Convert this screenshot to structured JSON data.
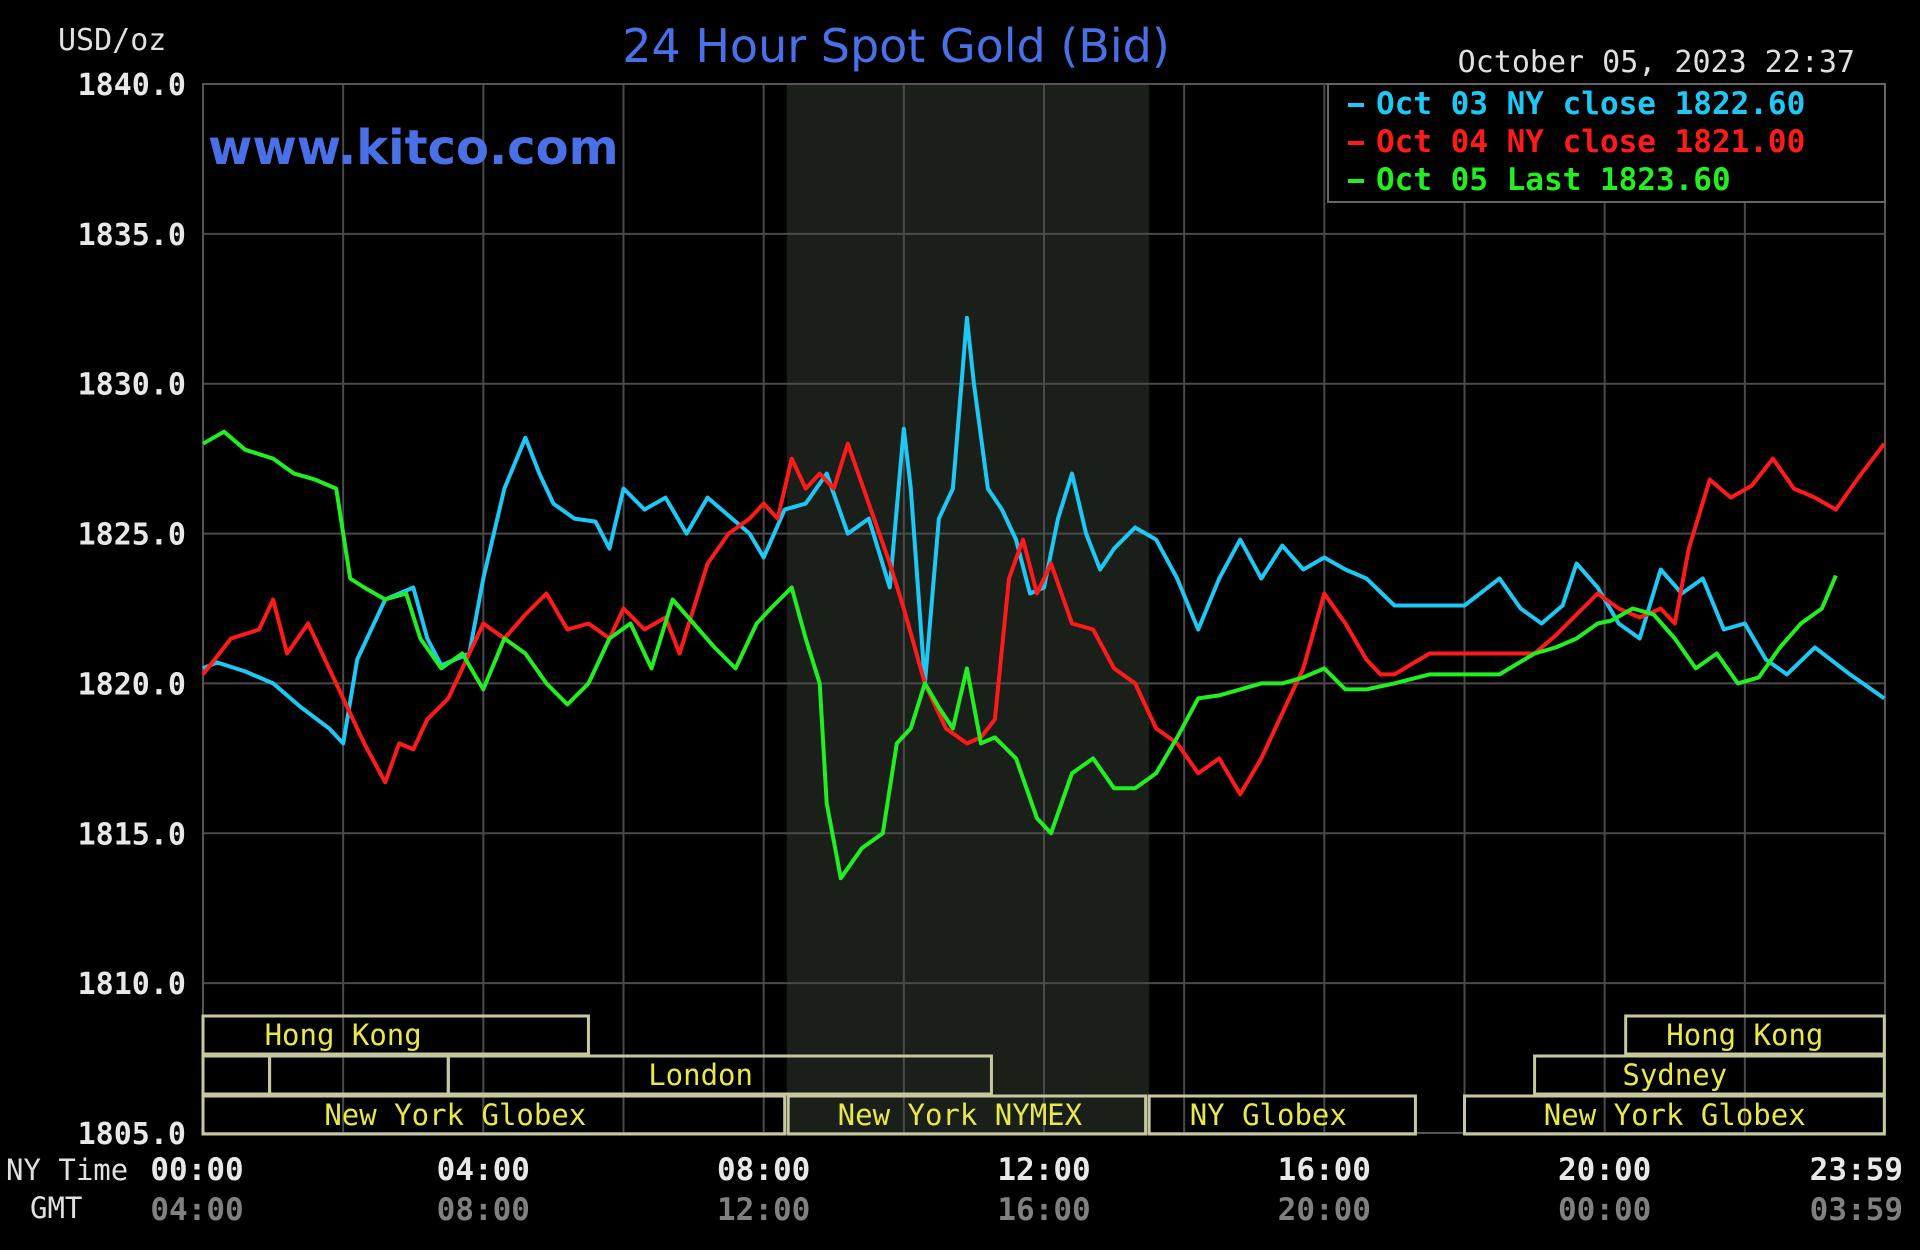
{
  "chart_data": {
    "type": "line",
    "title": "24 Hour Spot Gold (Bid)",
    "unit_label": "USD/oz",
    "watermark": "www.kitco.com",
    "timestamp": "October 05, 2023 22:37",
    "ylim": [
      1805.0,
      1840.0
    ],
    "y_ticks": [
      "1840.0",
      "1835.0",
      "1830.0",
      "1825.0",
      "1820.0",
      "1815.0",
      "1810.0",
      "1805.0"
    ],
    "x_axis": {
      "ny_label": "NY Time",
      "gmt_label": "GMT",
      "ny_ticks": [
        "00:00",
        "04:00",
        "08:00",
        "12:00",
        "16:00",
        "20:00",
        "23:59"
      ],
      "gmt_ticks": [
        "04:00",
        "08:00",
        "12:00",
        "16:00",
        "20:00",
        "00:00",
        "03:59"
      ],
      "range_hours": [
        0,
        24
      ]
    },
    "grid": true,
    "legend_position": "top-right",
    "legend": [
      {
        "label": "Oct 03 NY close 1822.60",
        "color": "#1ec8f4"
      },
      {
        "label": "Oct 04 NY close 1821.00",
        "color": "#ff1a1a"
      },
      {
        "label": "Oct 05 Last 1823.60",
        "color": "#22ee22"
      }
    ],
    "shaded_session": [
      8.33,
      13.5
    ],
    "series": [
      {
        "color": "#1ec8f4",
        "x": [
          0,
          0.2,
          0.6,
          1.0,
          1.4,
          1.8,
          2.0,
          2.2,
          2.6,
          3.0,
          3.2,
          3.4,
          3.8,
          4.0,
          4.3,
          4.6,
          4.8,
          5.0,
          5.3,
          5.6,
          5.8,
          6.0,
          6.3,
          6.6,
          6.9,
          7.2,
          7.5,
          7.8,
          8.0,
          8.3,
          8.6,
          8.9,
          9.2,
          9.5,
          9.8,
          10.0,
          10.1,
          10.3,
          10.5,
          10.7,
          10.9,
          11.0,
          11.2,
          11.4,
          11.6,
          11.8,
          12.0,
          12.2,
          12.4,
          12.6,
          12.8,
          13.0,
          13.3,
          13.6,
          13.9,
          14.2,
          14.5,
          14.8,
          15.1,
          15.4,
          15.7,
          16.0,
          16.3,
          16.6,
          17.0,
          17.5,
          18.0,
          18.5,
          18.8,
          19.1,
          19.4,
          19.6,
          19.9,
          20.2,
          20.5,
          20.8,
          21.1,
          21.4,
          21.7,
          22.0,
          22.3,
          22.6,
          23.0,
          23.5,
          23.99
        ],
        "values": [
          1820.5,
          1820.7,
          1820.4,
          1820.0,
          1819.2,
          1818.5,
          1818.0,
          1820.8,
          1822.8,
          1823.2,
          1821.5,
          1820.6,
          1821.0,
          1823.5,
          1826.5,
          1828.2,
          1827.0,
          1826.0,
          1825.5,
          1825.4,
          1824.5,
          1826.5,
          1825.8,
          1826.2,
          1825.0,
          1826.2,
          1825.6,
          1825.0,
          1824.2,
          1825.8,
          1826.0,
          1827.0,
          1825.0,
          1825.5,
          1823.2,
          1828.5,
          1826.5,
          1820.0,
          1825.5,
          1826.5,
          1832.2,
          1830.0,
          1826.5,
          1825.8,
          1824.8,
          1823.0,
          1823.2,
          1825.5,
          1827.0,
          1825.0,
          1823.8,
          1824.5,
          1825.2,
          1824.8,
          1823.5,
          1821.8,
          1823.5,
          1824.8,
          1823.5,
          1824.6,
          1823.8,
          1824.2,
          1823.8,
          1823.5,
          1822.6,
          1822.6,
          1822.6,
          1823.5,
          1822.5,
          1822.0,
          1822.6,
          1824.0,
          1823.2,
          1822.0,
          1821.5,
          1823.8,
          1823.0,
          1823.5,
          1821.8,
          1822.0,
          1820.8,
          1820.3,
          1821.2,
          1820.3,
          1819.5
        ]
      },
      {
        "color": "#ff1a1a",
        "x": [
          0,
          0.4,
          0.8,
          1.0,
          1.2,
          1.5,
          1.8,
          2.0,
          2.3,
          2.6,
          2.8,
          3.0,
          3.2,
          3.5,
          3.8,
          4.0,
          4.3,
          4.6,
          4.9,
          5.2,
          5.5,
          5.8,
          6.0,
          6.3,
          6.6,
          6.8,
          7.0,
          7.2,
          7.5,
          7.8,
          8.0,
          8.2,
          8.4,
          8.6,
          8.8,
          9.0,
          9.2,
          9.5,
          9.8,
          10.0,
          10.3,
          10.6,
          10.9,
          11.1,
          11.3,
          11.5,
          11.7,
          11.9,
          12.1,
          12.4,
          12.7,
          13.0,
          13.3,
          13.6,
          13.9,
          14.2,
          14.5,
          14.8,
          15.1,
          15.4,
          15.7,
          16.0,
          16.3,
          16.6,
          16.8,
          17.0,
          17.5,
          18.0,
          18.5,
          19.0,
          19.3,
          19.6,
          19.9,
          20.2,
          20.5,
          20.8,
          21.0,
          21.2,
          21.5,
          21.8,
          22.1,
          22.4,
          22.7,
          23.0,
          23.3,
          23.6,
          23.99
        ],
        "values": [
          1820.3,
          1821.5,
          1821.8,
          1822.8,
          1821.0,
          1822.0,
          1820.5,
          1819.5,
          1818.0,
          1816.7,
          1818.0,
          1817.8,
          1818.8,
          1819.5,
          1821.0,
          1822.0,
          1821.5,
          1822.3,
          1823.0,
          1821.8,
          1822.0,
          1821.5,
          1822.5,
          1821.8,
          1822.2,
          1821.0,
          1822.5,
          1824.0,
          1825.0,
          1825.5,
          1826.0,
          1825.5,
          1827.5,
          1826.5,
          1827.0,
          1826.5,
          1828.0,
          1826.0,
          1824.0,
          1822.5,
          1820.0,
          1818.5,
          1818.0,
          1818.2,
          1818.8,
          1823.5,
          1824.8,
          1823.0,
          1824.0,
          1822.0,
          1821.8,
          1820.5,
          1820.0,
          1818.5,
          1818.0,
          1817.0,
          1817.5,
          1816.3,
          1817.5,
          1819.0,
          1820.5,
          1823.0,
          1822.0,
          1820.8,
          1820.3,
          1820.3,
          1821.0,
          1821.0,
          1821.0,
          1821.0,
          1821.6,
          1822.3,
          1823.0,
          1822.5,
          1822.2,
          1822.5,
          1822.0,
          1824.5,
          1826.8,
          1826.2,
          1826.6,
          1827.5,
          1826.5,
          1826.2,
          1825.8,
          1826.8,
          1828.0
        ]
      },
      {
        "color": "#22ee22",
        "x": [
          0,
          0.3,
          0.6,
          1.0,
          1.3,
          1.6,
          1.9,
          2.1,
          2.3,
          2.6,
          2.9,
          3.1,
          3.4,
          3.7,
          4.0,
          4.3,
          4.6,
          4.9,
          5.2,
          5.5,
          5.8,
          6.1,
          6.4,
          6.7,
          7.0,
          7.3,
          7.6,
          7.9,
          8.1,
          8.4,
          8.6,
          8.8,
          8.9,
          9.1,
          9.4,
          9.7,
          9.9,
          10.1,
          10.3,
          10.5,
          10.7,
          10.9,
          11.1,
          11.3,
          11.6,
          11.9,
          12.1,
          12.4,
          12.7,
          13.0,
          13.3,
          13.6,
          13.9,
          14.2,
          14.5,
          14.8,
          15.1,
          15.4,
          15.7,
          16.0,
          16.3,
          16.6,
          17.0,
          17.5,
          18.0,
          18.5,
          19.0,
          19.3,
          19.6,
          19.9,
          20.1,
          20.4,
          20.7,
          21.0,
          21.3,
          21.6,
          21.9,
          22.2,
          22.5,
          22.8,
          23.1,
          23.3
        ],
        "values": [
          1828.0,
          1828.4,
          1827.8,
          1827.5,
          1827.0,
          1826.8,
          1826.5,
          1823.5,
          1823.2,
          1822.8,
          1823.0,
          1821.5,
          1820.5,
          1821.0,
          1819.8,
          1821.5,
          1821.0,
          1820.0,
          1819.3,
          1820.0,
          1821.5,
          1822.0,
          1820.5,
          1822.8,
          1822.0,
          1821.2,
          1820.5,
          1822.0,
          1822.5,
          1823.2,
          1821.5,
          1820.0,
          1816.0,
          1813.5,
          1814.5,
          1815.0,
          1818.0,
          1818.5,
          1820.0,
          1819.2,
          1818.5,
          1820.5,
          1818.0,
          1818.2,
          1817.5,
          1815.5,
          1815.0,
          1817.0,
          1817.5,
          1816.5,
          1816.5,
          1817.0,
          1818.2,
          1819.5,
          1819.6,
          1819.8,
          1820.0,
          1820.0,
          1820.2,
          1820.5,
          1819.8,
          1819.8,
          1820.0,
          1820.3,
          1820.3,
          1820.3,
          1821.0,
          1821.2,
          1821.5,
          1822.0,
          1822.1,
          1822.5,
          1822.3,
          1821.5,
          1820.5,
          1821.0,
          1820.0,
          1820.2,
          1821.2,
          1822.0,
          1822.5,
          1823.6
        ]
      }
    ],
    "session_bars": [
      {
        "label": "Hong Kong",
        "row": 0,
        "start": 0,
        "end": 5.5,
        "label_at": 2.0
      },
      {
        "label": "Hong Kong",
        "row": 0,
        "start": 20.3,
        "end": 23.99,
        "label_at": 22.0
      },
      {
        "label": "",
        "row": 1,
        "start": 0,
        "end": 0.95
      },
      {
        "label": "",
        "row": 1,
        "start": 0.95,
        "end": 3.5
      },
      {
        "label": "London",
        "row": 1,
        "start": 3.5,
        "end": 11.25,
        "label_at": 7.1
      },
      {
        "label": "Sydney",
        "row": 1,
        "start": 19.0,
        "end": 23.99,
        "label_at": 21.0
      },
      {
        "label": "New York Globex",
        "row": 2,
        "start": 0,
        "end": 8.3,
        "label_at": 3.6
      },
      {
        "label": "New York NYMEX",
        "row": 2,
        "start": 8.35,
        "end": 13.45,
        "label_at": 10.8
      },
      {
        "label": "NY Globex",
        "row": 2,
        "start": 13.5,
        "end": 17.3,
        "label_at": 15.2
      },
      {
        "label": "New York Globex",
        "row": 2,
        "start": 18.0,
        "end": 23.99,
        "label_at": 21.0
      }
    ]
  }
}
